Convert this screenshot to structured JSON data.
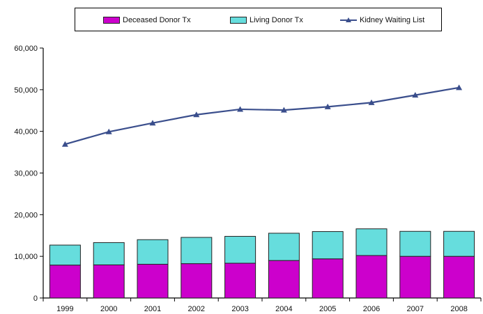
{
  "chart_data": {
    "type": "bar",
    "x": [
      "1999",
      "2000",
      "2001",
      "2002",
      "2003",
      "2004",
      "2005",
      "2006",
      "2007",
      "2008"
    ],
    "series": [
      {
        "name": "Deceased Donor Tx",
        "kind": "stacked-bar",
        "color": "#cc00cc",
        "values": [
          7900,
          7950,
          8100,
          8250,
          8350,
          9000,
          9400,
          10200,
          10000,
          10000
        ]
      },
      {
        "name": "Living Donor Tx",
        "kind": "stacked-bar",
        "color": "#66dddd",
        "values": [
          4800,
          5350,
          5900,
          6300,
          6450,
          6550,
          6550,
          6400,
          6000,
          6000
        ]
      },
      {
        "name": "Kidney Waiting List",
        "kind": "line",
        "color": "#3a4e8c",
        "values": [
          36900,
          39900,
          42000,
          44000,
          45300,
          45100,
          45900,
          46900,
          48700,
          50500
        ]
      }
    ],
    "yticks": [
      "0",
      "10,000",
      "20,000",
      "30,000",
      "40,000",
      "50,000",
      "60,000"
    ],
    "ylim": [
      0,
      60000
    ],
    "legend_position": "top",
    "grid": false
  }
}
